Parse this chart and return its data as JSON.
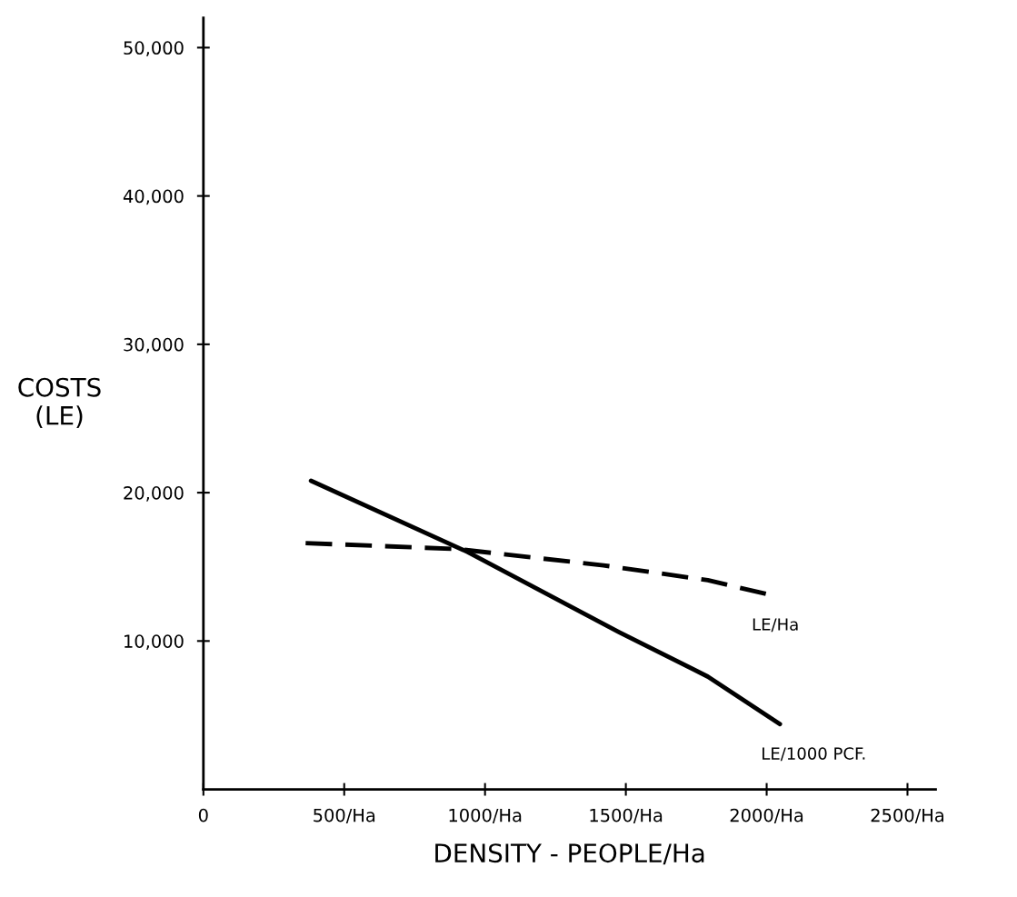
{
  "chart_data": {
    "type": "line",
    "xlabel": "DENSITY - PEOPLE/Ha",
    "ylabel": "COSTS\n(LE)",
    "xlim": [
      0,
      2600
    ],
    "ylim": [
      0,
      52000
    ],
    "xticks": [
      0,
      {
        "value": 500,
        "label": "500/Ha"
      },
      {
        "value": 1000,
        "label": "1000/Ha"
      },
      {
        "value": 1500,
        "label": "1500/Ha"
      },
      {
        "value": 2000,
        "label": "2000/Ha"
      },
      {
        "value": 2500,
        "label": "2500/Ha"
      }
    ],
    "yticks": [
      {
        "value": 10000,
        "label": "10,000"
      },
      {
        "value": 20000,
        "label": "20,000"
      },
      {
        "value": 30000,
        "label": "30,000"
      },
      {
        "value": 40000,
        "label": "40,000"
      },
      {
        "value": 50000,
        "label": "50,000"
      }
    ],
    "grid": false,
    "legend": false,
    "marker": "none",
    "series": [
      {
        "name": "LE/1000 PCF.",
        "color": "#000000",
        "line_style": "solid",
        "x": [
          382,
          938,
          1476,
          1791,
          2047
        ],
        "values": [
          20800,
          16000,
          10600,
          7600,
          4400
        ]
      },
      {
        "name": "LE/Ha",
        "color": "#000000",
        "line_style": "dashed",
        "x": [
          363,
          901,
          1421,
          1791,
          2014
        ],
        "values": [
          16600,
          16200,
          15100,
          14100,
          13100
        ]
      }
    ]
  }
}
